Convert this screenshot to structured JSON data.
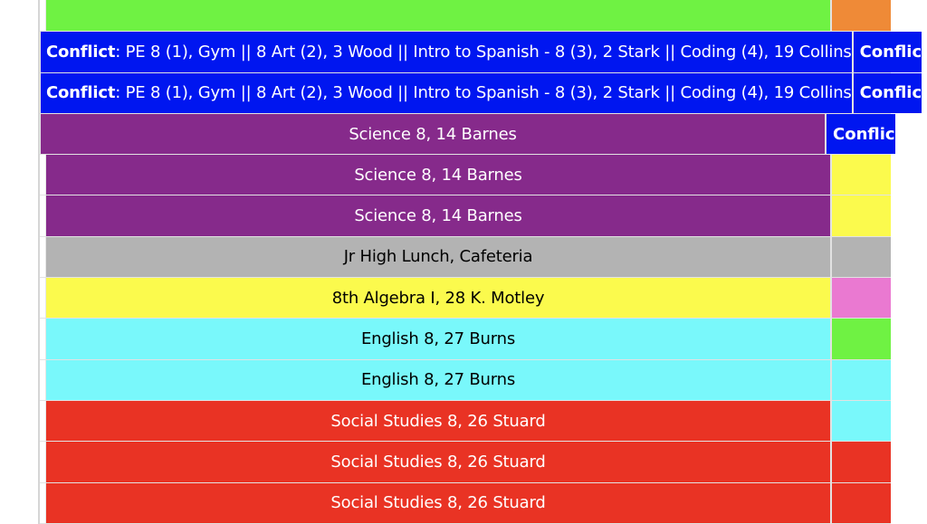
{
  "rows": [
    {
      "main": {
        "bg": "#6ff243",
        "color": "#000000",
        "text": "",
        "conflict": false
      },
      "side": {
        "bg": "#ef8a37",
        "color": "#000000",
        "text": "",
        "conflict": false
      }
    },
    {
      "main": {
        "bg": "#0016f0",
        "color": "#ffffff",
        "conflict": true,
        "label": "Conflict",
        "text": ": PE 8 (1), Gym || 8 Art (2), 3 Wood || Intro to Spanish - 8 (3), 2 Stark || Coding (4), 19 Collins"
      },
      "side": {
        "bg": "#0016f0",
        "color": "#ffffff",
        "conflict": true,
        "label": "Conflic",
        "text": ""
      }
    },
    {
      "main": {
        "bg": "#0016f0",
        "color": "#ffffff",
        "conflict": true,
        "label": "Conflict",
        "text": ": PE 8 (1), Gym || 8 Art (2), 3 Wood || Intro to Spanish - 8 (3), 2 Stark || Coding (4), 19 Collins"
      },
      "side": {
        "bg": "#0016f0",
        "color": "#ffffff",
        "conflict": true,
        "label": "Conflic",
        "text": ""
      }
    },
    {
      "main": {
        "bg": "#862a8b",
        "color": "#ffffff",
        "text": "Science 8, 14 Barnes",
        "conflict": false
      },
      "side": {
        "bg": "#0016f0",
        "color": "#ffffff",
        "conflict": true,
        "label": "Conflic",
        "text": ""
      }
    },
    {
      "main": {
        "bg": "#862a8b",
        "color": "#ffffff",
        "text": "Science 8, 14 Barnes",
        "conflict": false
      },
      "side": {
        "bg": "#fbfa4d",
        "color": "#000000",
        "text": "",
        "conflict": false
      }
    },
    {
      "main": {
        "bg": "#862a8b",
        "color": "#ffffff",
        "text": "Science 8, 14 Barnes",
        "conflict": false
      },
      "side": {
        "bg": "#fbfa4d",
        "color": "#000000",
        "text": "",
        "conflict": false
      }
    },
    {
      "main": {
        "bg": "#b3b3b3",
        "color": "#000000",
        "text": "Jr High Lunch, Cafeteria",
        "conflict": false
      },
      "side": {
        "bg": "#b3b3b3",
        "color": "#000000",
        "text": "",
        "conflict": false
      }
    },
    {
      "main": {
        "bg": "#fbfa4d",
        "color": "#000000",
        "text": "8th Algebra I, 28 K. Motley",
        "conflict": false
      },
      "side": {
        "bg": "#ea79d1",
        "color": "#000000",
        "text": "",
        "conflict": false
      }
    },
    {
      "main": {
        "bg": "#79f8fb",
        "color": "#000000",
        "text": "English 8, 27 Burns",
        "conflict": false
      },
      "side": {
        "bg": "#6ff243",
        "color": "#000000",
        "text": "",
        "conflict": false
      }
    },
    {
      "main": {
        "bg": "#79f8fb",
        "color": "#000000",
        "text": "English 8, 27 Burns",
        "conflict": false
      },
      "side": {
        "bg": "#79f8fb",
        "color": "#000000",
        "text": "",
        "conflict": false
      }
    },
    {
      "main": {
        "bg": "#e93324",
        "color": "#ffffff",
        "text": "Social Studies 8, 26 Stuard",
        "conflict": false
      },
      "side": {
        "bg": "#79f8fb",
        "color": "#000000",
        "text": "",
        "conflict": false
      }
    },
    {
      "main": {
        "bg": "#e93324",
        "color": "#ffffff",
        "text": "Social Studies 8, 26 Stuard",
        "conflict": false
      },
      "side": {
        "bg": "#e93324",
        "color": "#ffffff",
        "text": "",
        "conflict": false
      }
    },
    {
      "main": {
        "bg": "#e93324",
        "color": "#ffffff",
        "text": "Social Studies 8, 26 Stuard",
        "conflict": false
      },
      "side": {
        "bg": "#e93324",
        "color": "#ffffff",
        "text": "",
        "conflict": false
      }
    }
  ]
}
